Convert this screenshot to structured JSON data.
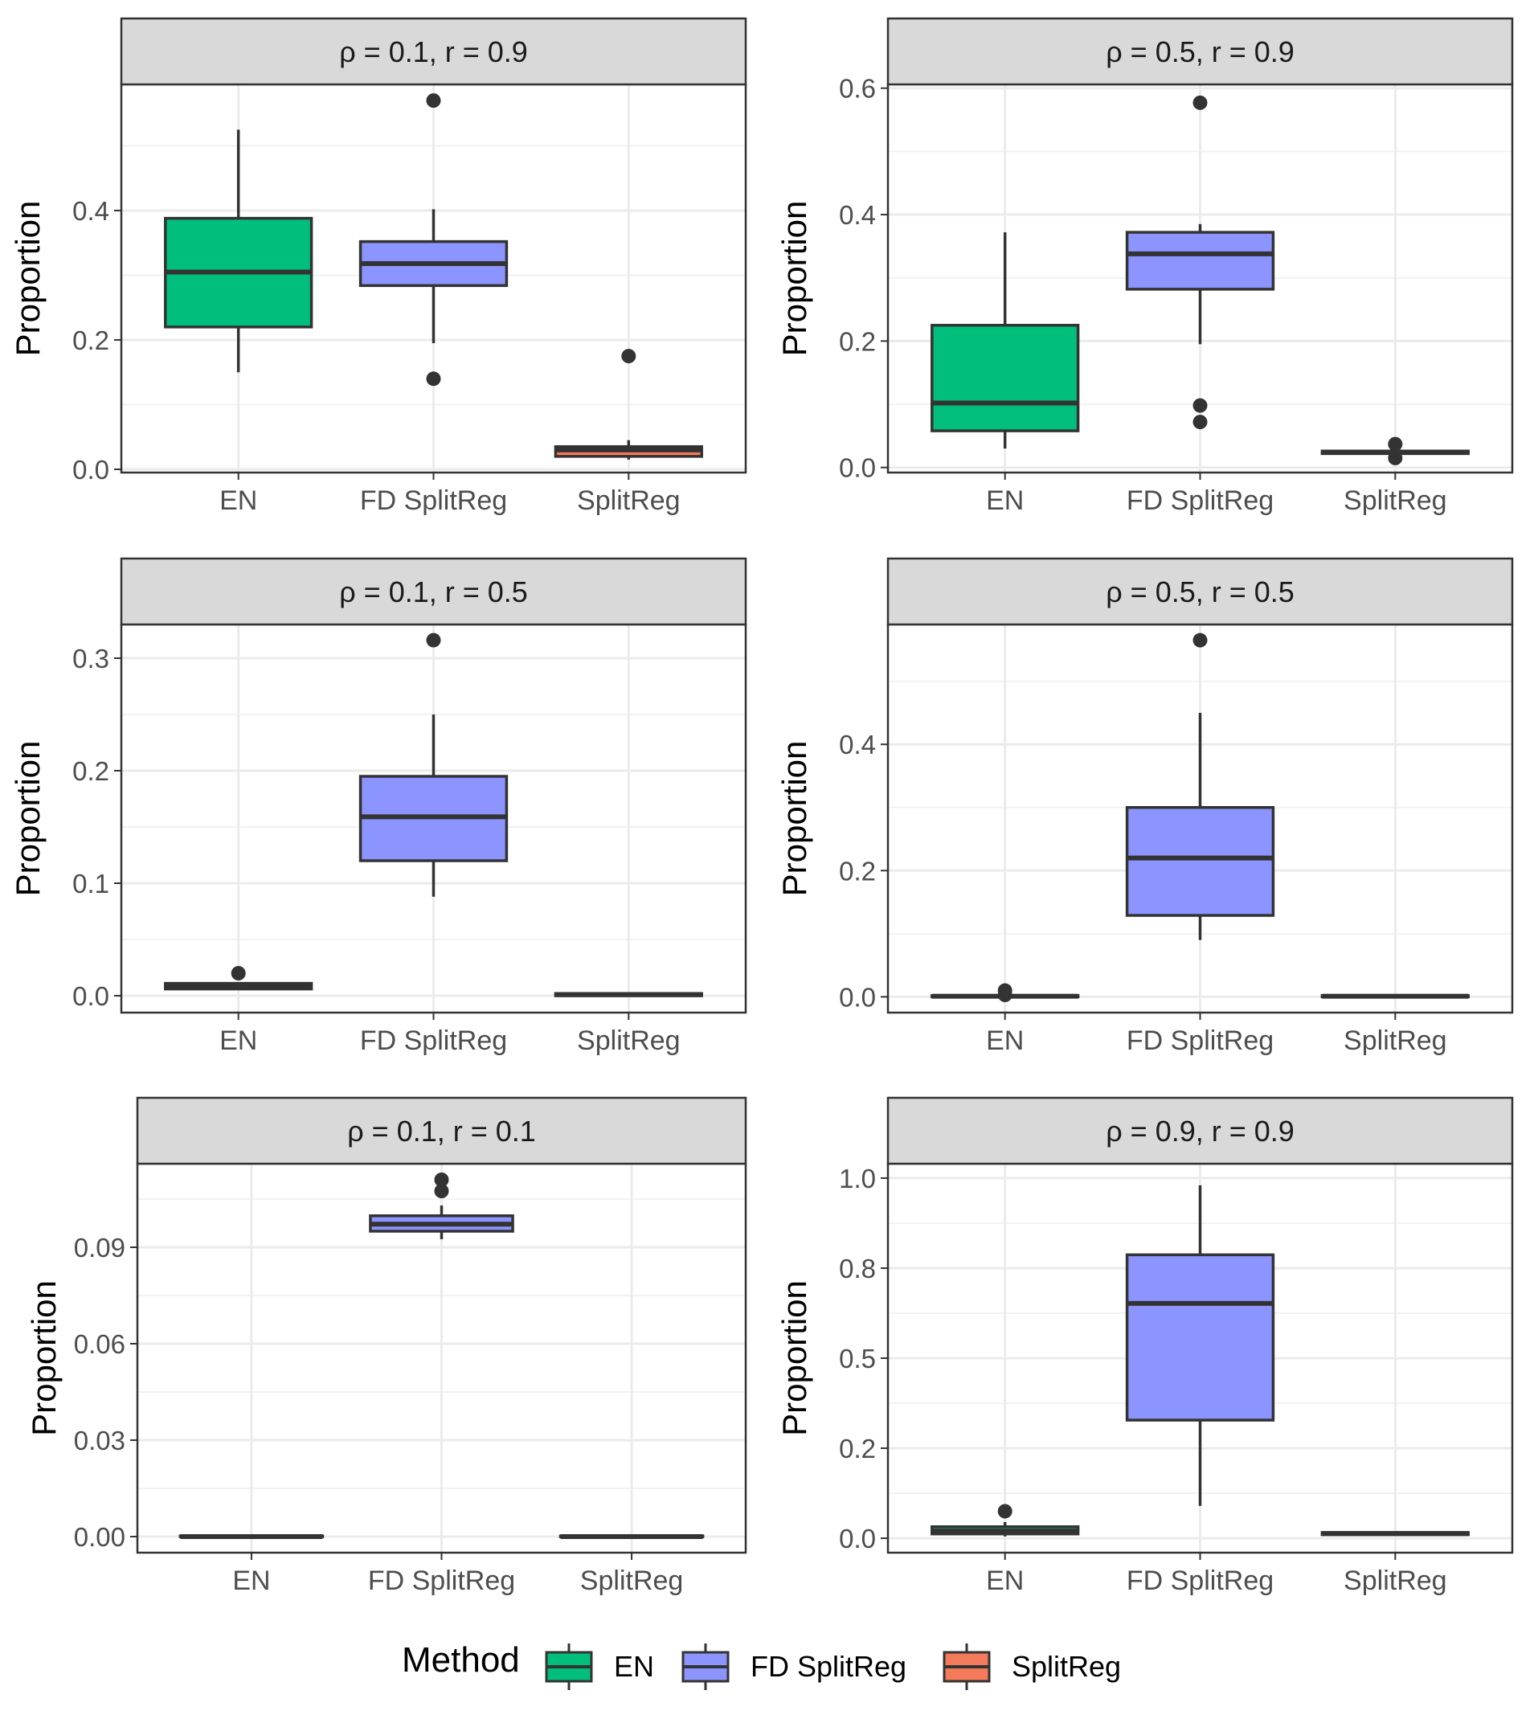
{
  "figure": {
    "legend": {
      "title": "Method",
      "items": [
        {
          "label": "EN",
          "color": "#00BF7D"
        },
        {
          "label": "FD SplitReg",
          "color": "#8C94FF"
        },
        {
          "label": "SplitReg",
          "color": "#F37A5A"
        }
      ],
      "position": "bottom"
    }
  },
  "chart_data": [
    {
      "type": "boxplot",
      "title": "ρ = 0.1,  r = 0.9",
      "xlabel": "",
      "ylabel": "Proportion",
      "categories": [
        "EN",
        "FD SplitReg",
        "SplitReg"
      ],
      "ylim": [
        -0.005,
        0.595
      ],
      "yticks": [
        0.0,
        0.2,
        0.4
      ],
      "ytick_labels": [
        "0.0",
        "0.2",
        "0.4"
      ],
      "minor_gridlines": [
        0.1,
        0.3,
        0.5
      ],
      "boxes": [
        {
          "category": "EN",
          "low": 0.15,
          "q1": 0.22,
          "median": 0.305,
          "q3": 0.388,
          "high": 0.525,
          "outliers": []
        },
        {
          "category": "FD SplitReg",
          "low": 0.195,
          "q1": 0.284,
          "median": 0.318,
          "q3": 0.352,
          "high": 0.402,
          "outliers": [
            0.57,
            0.14
          ]
        },
        {
          "category": "SplitReg",
          "low": 0.015,
          "q1": 0.02,
          "median": 0.03,
          "q3": 0.035,
          "high": 0.045,
          "outliers": [
            0.175
          ]
        }
      ]
    },
    {
      "type": "boxplot",
      "title": "ρ = 0.5,  r = 0.9",
      "xlabel": "",
      "ylabel": "Proportion",
      "categories": [
        "EN",
        "FD SplitReg",
        "SplitReg"
      ],
      "ylim": [
        -0.008,
        0.606
      ],
      "yticks": [
        0.0,
        0.2,
        0.4,
        0.6
      ],
      "ytick_labels": [
        "0.0",
        "0.2",
        "0.4",
        "0.6"
      ],
      "minor_gridlines": [
        0.1,
        0.3,
        0.5
      ],
      "boxes": [
        {
          "category": "EN",
          "low": 0.03,
          "q1": 0.058,
          "median": 0.102,
          "q3": 0.225,
          "high": 0.372,
          "outliers": []
        },
        {
          "category": "FD SplitReg",
          "low": 0.195,
          "q1": 0.282,
          "median": 0.338,
          "q3": 0.372,
          "high": 0.385,
          "outliers": [
            0.577,
            0.098,
            0.072
          ]
        },
        {
          "category": "SplitReg",
          "low": 0.021,
          "q1": 0.022,
          "median": 0.024,
          "q3": 0.026,
          "high": 0.028,
          "outliers": [
            0.037,
            0.015
          ]
        }
      ]
    },
    {
      "type": "boxplot",
      "title": "ρ = 0.1,  r = 0.5",
      "xlabel": "",
      "ylabel": "Proportion",
      "categories": [
        "EN",
        "FD SplitReg",
        "SplitReg"
      ],
      "ylim": [
        -0.015,
        0.33
      ],
      "yticks": [
        0.0,
        0.1,
        0.2,
        0.3
      ],
      "ytick_labels": [
        "0.0",
        "0.1",
        "0.2",
        "0.3"
      ],
      "minor_gridlines": [
        0.05,
        0.15,
        0.25
      ],
      "boxes": [
        {
          "category": "EN",
          "low": 0.005,
          "q1": 0.006,
          "median": 0.009,
          "q3": 0.011,
          "high": 0.012,
          "outliers": [
            0.02
          ]
        },
        {
          "category": "FD SplitReg",
          "low": 0.088,
          "q1": 0.12,
          "median": 0.159,
          "q3": 0.195,
          "high": 0.25,
          "outliers": [
            0.316
          ]
        },
        {
          "category": "SplitReg",
          "low": 0.0,
          "q1": 0.0,
          "median": 0.001,
          "q3": 0.002,
          "high": 0.002,
          "outliers": []
        }
      ]
    },
    {
      "type": "boxplot",
      "title": "ρ = 0.5,  r = 0.5",
      "xlabel": "",
      "ylabel": "Proportion",
      "categories": [
        "EN",
        "FD SplitReg",
        "SplitReg"
      ],
      "ylim": [
        -0.025,
        0.59
      ],
      "yticks": [
        0.0,
        0.2,
        0.4
      ],
      "ytick_labels": [
        "0.0",
        "0.2",
        "0.4"
      ],
      "minor_gridlines": [
        0.1,
        0.3,
        0.5
      ],
      "boxes": [
        {
          "category": "EN",
          "low": 0.0,
          "q1": 0.0,
          "median": 0.001,
          "q3": 0.002,
          "high": 0.003,
          "outliers": [
            0.01,
            0.003
          ]
        },
        {
          "category": "FD SplitReg",
          "low": 0.09,
          "q1": 0.129,
          "median": 0.22,
          "q3": 0.3,
          "high": 0.45,
          "outliers": [
            0.565
          ]
        },
        {
          "category": "SplitReg",
          "low": 0.0,
          "q1": 0.0,
          "median": 0.001,
          "q3": 0.002,
          "high": 0.002,
          "outliers": []
        }
      ]
    },
    {
      "type": "boxplot",
      "title": "ρ = 0.1,  r = 0.1",
      "xlabel": "",
      "ylabel": "Proportion",
      "categories": [
        "EN",
        "FD SplitReg",
        "SplitReg"
      ],
      "ylim": [
        -0.005,
        0.116
      ],
      "yticks": [
        0.0,
        0.03,
        0.06,
        0.09
      ],
      "ytick_labels": [
        "0.00",
        "0.03",
        "0.06",
        "0.09"
      ],
      "minor_gridlines": [
        0.015,
        0.045,
        0.075,
        0.105
      ],
      "boxes": [
        {
          "category": "EN",
          "low": 0.0,
          "q1": 0.0,
          "median": 0.0,
          "q3": 0.0002,
          "high": 0.0003,
          "outliers": []
        },
        {
          "category": "FD SplitReg",
          "low": 0.0925,
          "q1": 0.095,
          "median": 0.0972,
          "q3": 0.0998,
          "high": 0.103,
          "outliers": [
            0.111,
            0.1075
          ]
        },
        {
          "category": "SplitReg",
          "low": 0.0,
          "q1": 0.0,
          "median": 0.0,
          "q3": 0.0002,
          "high": 0.0003,
          "outliers": []
        }
      ]
    },
    {
      "type": "boxplot",
      "title": "ρ = 0.9,  r = 0.9",
      "xlabel": "",
      "ylabel": "Proportion",
      "categories": [
        "EN",
        "FD SplitReg",
        "SplitReg"
      ],
      "ylim": [
        -0.04,
        1.04
      ],
      "yticks": [
        0.0,
        0.25,
        0.5,
        0.75,
        1.0
      ],
      "ytick_labels": [
        "0.0",
        "0.2",
        "0.5",
        "0.8",
        "1.0"
      ],
      "minor_gridlines": [
        0.125,
        0.375,
        0.625,
        0.875
      ],
      "boxes": [
        {
          "category": "EN",
          "low": 0.005,
          "q1": 0.012,
          "median": 0.02,
          "q3": 0.032,
          "high": 0.045,
          "outliers": [
            0.075
          ]
        },
        {
          "category": "FD SplitReg",
          "low": 0.09,
          "q1": 0.328,
          "median": 0.652,
          "q3": 0.787,
          "high": 0.98,
          "outliers": []
        },
        {
          "category": "SplitReg",
          "low": 0.008,
          "q1": 0.01,
          "median": 0.013,
          "q3": 0.016,
          "high": 0.018,
          "outliers": []
        }
      ]
    }
  ]
}
